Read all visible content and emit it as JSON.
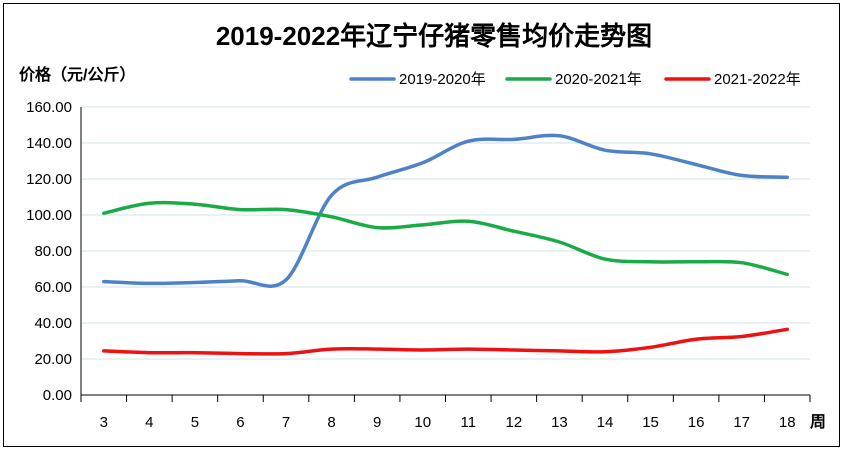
{
  "chart_data": {
    "type": "line",
    "title": "2019-2022年辽宁仔猪零售均价走势图",
    "ylabel": "价格（元/公斤）",
    "xlabel": "周",
    "ylim": [
      0,
      160
    ],
    "yticks": [
      "0.00",
      "20.00",
      "40.00",
      "60.00",
      "80.00",
      "100.00",
      "120.00",
      "140.00",
      "160.00"
    ],
    "categories": [
      "3",
      "4",
      "5",
      "6",
      "7",
      "8",
      "9",
      "10",
      "11",
      "12",
      "13",
      "14",
      "15",
      "16",
      "17",
      "18"
    ],
    "grid": true,
    "legend_position": "top-right",
    "series": [
      {
        "name": "2019-2020年",
        "color": "#4f81c7",
        "values": [
          63,
          62,
          62.5,
          63.5,
          64,
          111,
          121,
          129,
          141,
          142,
          144,
          136,
          134,
          128,
          122,
          121
        ]
      },
      {
        "name": "2020-2021年",
        "color": "#1aab47",
        "values": [
          101,
          106.5,
          106,
          103,
          103,
          99,
          93,
          94.5,
          96.5,
          91,
          85,
          75.5,
          74,
          74,
          73.5,
          67
        ]
      },
      {
        "name": "2021-2022年",
        "color": "#ee1111",
        "values": [
          24.5,
          23.5,
          23.5,
          23,
          23,
          25.5,
          25.5,
          25,
          25.5,
          25,
          24.5,
          24,
          26.5,
          31,
          32.5,
          36.5
        ]
      }
    ]
  }
}
